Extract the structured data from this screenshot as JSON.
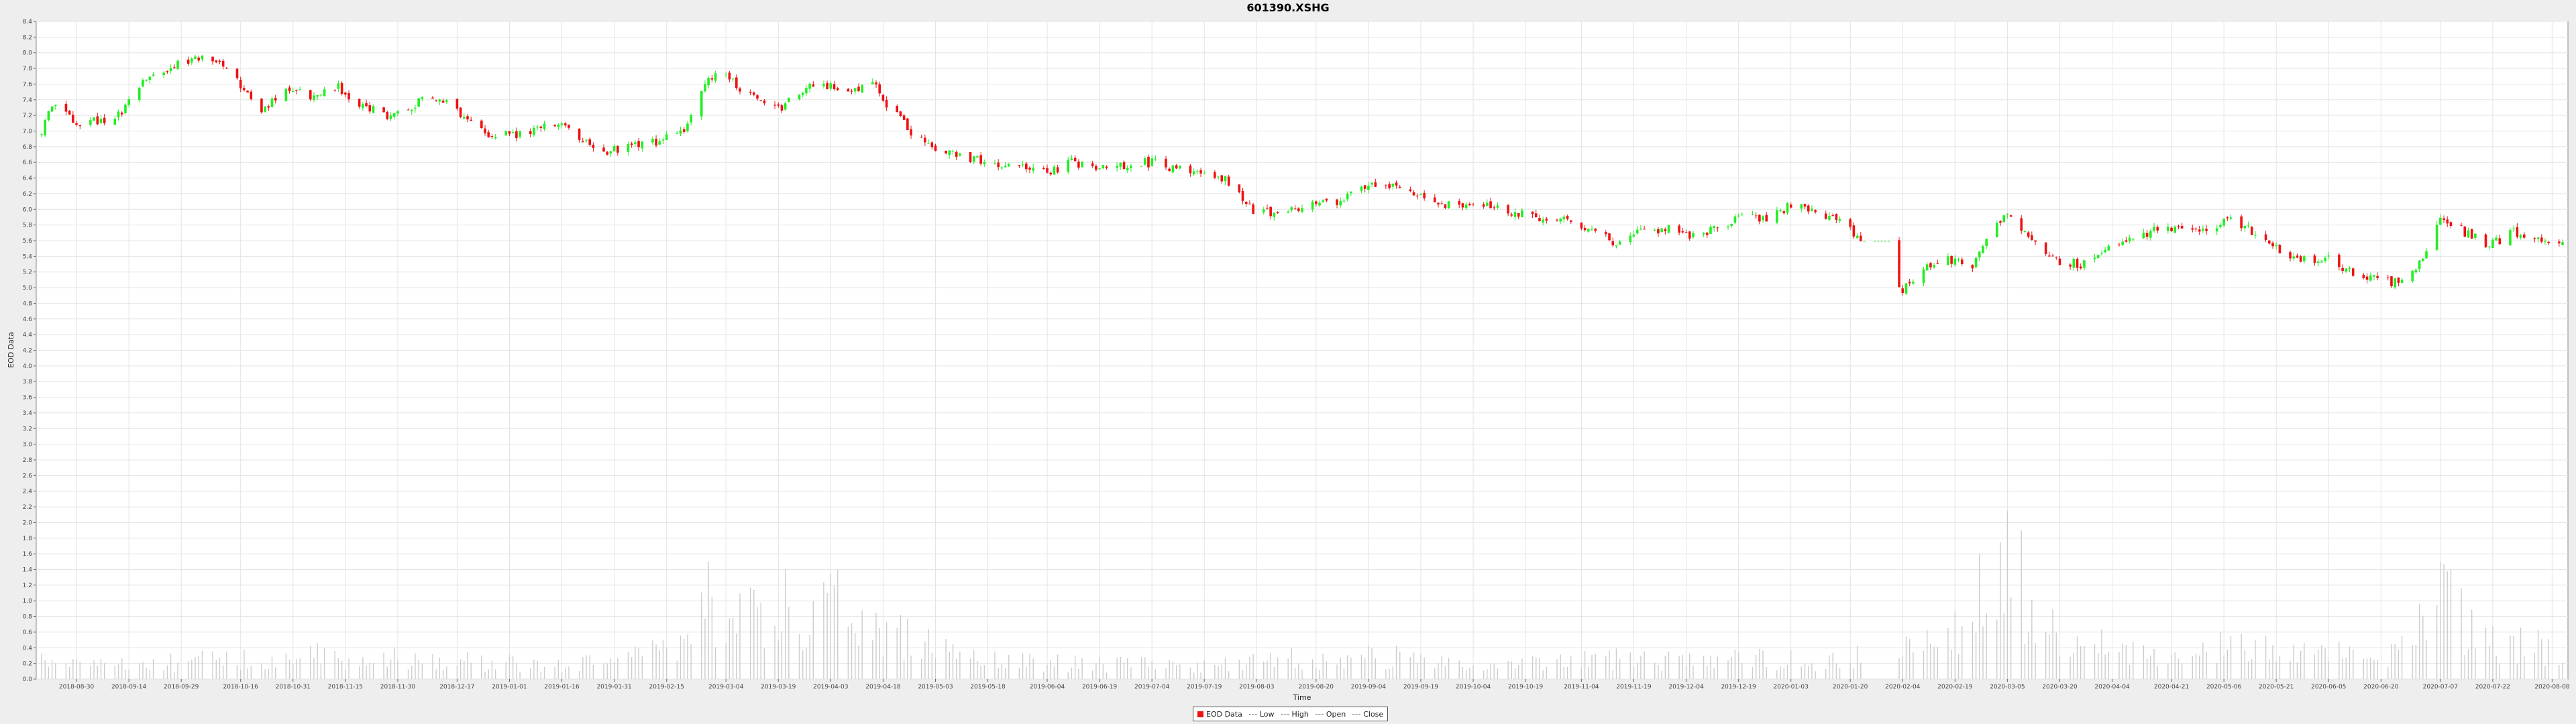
{
  "chart_data": {
    "type": "candlestick",
    "title": "601390.XSHG",
    "xlabel": "Time",
    "ylabel": "EOD Data",
    "ylim": [
      0.0,
      8.4
    ],
    "ytick_step": 0.2,
    "xlim": [
      "2018-08-20",
      "2020-08-11"
    ],
    "x_ticks": [
      "2018-08-30",
      "2018-09-14",
      "2018-09-29",
      "2018-10-16",
      "2018-10-31",
      "2018-11-15",
      "2018-11-30",
      "2018-12-17",
      "2019-01-01",
      "2019-01-16",
      "2019-01-31",
      "2019-02-15",
      "2019-03-04",
      "2019-03-19",
      "2019-04-03",
      "2019-04-18",
      "2019-05-03",
      "2019-05-18",
      "2019-06-04",
      "2019-06-19",
      "2019-07-04",
      "2019-07-19",
      "2019-08-03",
      "2019-08-20",
      "2019-09-04",
      "2019-09-19",
      "2019-10-04",
      "2019-10-19",
      "2019-11-04",
      "2019-11-19",
      "2019-12-04",
      "2019-12-19",
      "2020-01-03",
      "2020-01-20",
      "2020-02-04",
      "2020-02-19",
      "2020-03-05",
      "2020-03-20",
      "2020-04-04",
      "2020-04-21",
      "2020-05-06",
      "2020-05-21",
      "2020-06-05",
      "2020-06-20",
      "2020-07-07",
      "2020-07-22",
      "2020-08-08"
    ],
    "grid": true,
    "legend_position": "bottom",
    "legend": [
      "EOD Data",
      "Low",
      "High",
      "Open",
      "Close"
    ],
    "colors": {
      "up": "#22ee22",
      "down": "#ee1111",
      "volume": "#cccccc",
      "grid": "#e4e4e4",
      "plot_bg": "#ffffff",
      "frame_bg": "#eeeeee"
    },
    "price_anchors": [
      [
        "2018-08-20",
        6.95
      ],
      [
        "2018-08-23",
        7.35
      ],
      [
        "2018-08-30",
        7.1
      ],
      [
        "2018-09-07",
        7.15
      ],
      [
        "2018-09-12",
        7.2
      ],
      [
        "2018-09-17",
        7.6
      ],
      [
        "2018-09-28",
        7.85
      ],
      [
        "2018-10-08",
        7.95
      ],
      [
        "2018-10-15",
        7.65
      ],
      [
        "2018-10-22",
        7.25
      ],
      [
        "2018-10-30",
        7.55
      ],
      [
        "2018-11-06",
        7.45
      ],
      [
        "2018-11-13",
        7.55
      ],
      [
        "2018-11-20",
        7.3
      ],
      [
        "2018-11-28",
        7.2
      ],
      [
        "2018-12-05",
        7.35
      ],
      [
        "2018-12-12",
        7.45
      ],
      [
        "2018-12-19",
        7.15
      ],
      [
        "2018-12-26",
        6.95
      ],
      [
        "2019-01-04",
        6.95
      ],
      [
        "2019-01-09",
        7.05
      ],
      [
        "2019-01-18",
        7.05
      ],
      [
        "2019-01-25",
        6.75
      ],
      [
        "2019-02-01",
        6.75
      ],
      [
        "2019-02-12",
        6.85
      ],
      [
        "2019-02-20",
        7.0
      ],
      [
        "2019-02-25",
        7.55
      ],
      [
        "2019-03-01",
        7.75
      ],
      [
        "2019-03-07",
        7.6
      ],
      [
        "2019-03-12",
        7.4
      ],
      [
        "2019-03-20",
        7.3
      ],
      [
        "2019-03-27",
        7.55
      ],
      [
        "2019-04-03",
        7.55
      ],
      [
        "2019-04-10",
        7.55
      ],
      [
        "2019-04-16",
        7.6
      ],
      [
        "2019-04-19",
        7.35
      ],
      [
        "2019-04-26",
        7.0
      ],
      [
        "2019-05-06",
        6.7
      ],
      [
        "2019-05-14",
        6.65
      ],
      [
        "2019-05-24",
        6.55
      ],
      [
        "2019-06-04",
        6.45
      ],
      [
        "2019-06-11",
        6.6
      ],
      [
        "2019-06-20",
        6.55
      ],
      [
        "2019-07-04",
        6.6
      ],
      [
        "2019-07-12",
        6.5
      ],
      [
        "2019-07-19",
        6.45
      ],
      [
        "2019-07-26",
        6.35
      ],
      [
        "2019-08-03",
        5.95
      ],
      [
        "2019-08-13",
        6.0
      ],
      [
        "2019-08-20",
        6.05
      ],
      [
        "2019-08-27",
        6.1
      ],
      [
        "2019-09-04",
        6.3
      ],
      [
        "2019-09-11",
        6.3
      ],
      [
        "2019-09-18",
        6.2
      ],
      [
        "2019-09-25",
        6.05
      ],
      [
        "2019-10-09",
        6.05
      ],
      [
        "2019-10-17",
        5.95
      ],
      [
        "2019-10-24",
        5.9
      ],
      [
        "2019-11-01",
        5.85
      ],
      [
        "2019-11-08",
        5.7
      ],
      [
        "2019-11-15",
        5.55
      ],
      [
        "2019-11-22",
        5.75
      ],
      [
        "2019-11-29",
        5.75
      ],
      [
        "2019-12-06",
        5.65
      ],
      [
        "2019-12-13",
        5.75
      ],
      [
        "2019-12-20",
        5.9
      ],
      [
        "2019-12-27",
        5.9
      ],
      [
        "2020-01-03",
        6.05
      ],
      [
        "2020-01-10",
        5.95
      ],
      [
        "2020-01-17",
        5.85
      ],
      [
        "2020-01-23",
        5.6
      ],
      [
        "2020-02-03",
        4.95
      ],
      [
        "2020-02-10",
        5.25
      ],
      [
        "2020-02-17",
        5.35
      ],
      [
        "2020-02-24",
        5.3
      ],
      [
        "2020-03-02",
        5.85
      ],
      [
        "2020-03-05",
        5.95
      ],
      [
        "2020-03-12",
        5.6
      ],
      [
        "2020-03-19",
        5.35
      ],
      [
        "2020-03-26",
        5.3
      ],
      [
        "2020-04-02",
        5.45
      ],
      [
        "2020-04-10",
        5.65
      ],
      [
        "2020-04-17",
        5.75
      ],
      [
        "2020-04-24",
        5.8
      ],
      [
        "2020-04-30",
        5.75
      ],
      [
        "2020-05-08",
        5.85
      ],
      [
        "2020-05-15",
        5.7
      ],
      [
        "2020-05-22",
        5.45
      ],
      [
        "2020-05-29",
        5.35
      ],
      [
        "2020-06-05",
        5.35
      ],
      [
        "2020-06-12",
        5.2
      ],
      [
        "2020-06-19",
        5.1
      ],
      [
        "2020-06-26",
        5.05
      ],
      [
        "2020-07-03",
        5.45
      ],
      [
        "2020-07-07",
        5.95
      ],
      [
        "2020-07-14",
        5.7
      ],
      [
        "2020-07-21",
        5.55
      ],
      [
        "2020-07-28",
        5.7
      ],
      [
        "2020-08-04",
        5.65
      ],
      [
        "2020-08-11",
        5.55
      ]
    ],
    "volume_anchors": [
      [
        "2018-08-20",
        0.25
      ],
      [
        "2018-09-15",
        0.2
      ],
      [
        "2018-10-10",
        0.3
      ],
      [
        "2018-11-01",
        0.35
      ],
      [
        "2018-12-15",
        0.3
      ],
      [
        "2019-01-20",
        0.2
      ],
      [
        "2019-02-15",
        0.45
      ],
      [
        "2019-02-28",
        1.05
      ],
      [
        "2019-03-10",
        0.9
      ],
      [
        "2019-03-25",
        0.7
      ],
      [
        "2019-04-05",
        1.05
      ],
      [
        "2019-04-18",
        0.75
      ],
      [
        "2019-05-05",
        0.4
      ],
      [
        "2019-06-01",
        0.25
      ],
      [
        "2019-07-15",
        0.2
      ],
      [
        "2019-08-10",
        0.3
      ],
      [
        "2019-09-05",
        0.35
      ],
      [
        "2019-10-15",
        0.2
      ],
      [
        "2019-11-15",
        0.3
      ],
      [
        "2019-12-20",
        0.3
      ],
      [
        "2020-01-15",
        0.25
      ],
      [
        "2020-02-05",
        0.45
      ],
      [
        "2020-02-25",
        0.75
      ],
      [
        "2020-03-05",
        1.45
      ],
      [
        "2020-03-15",
        0.7
      ],
      [
        "2020-04-10",
        0.45
      ],
      [
        "2020-05-01",
        0.5
      ],
      [
        "2020-06-01",
        0.35
      ],
      [
        "2020-06-25",
        0.4
      ],
      [
        "2020-07-07",
        1.2
      ],
      [
        "2020-07-20",
        0.55
      ],
      [
        "2020-08-11",
        0.45
      ]
    ],
    "volume_peaks": [
      [
        "2019-02-27",
        1.5
      ],
      [
        "2019-03-21",
        1.4
      ],
      [
        "2019-04-03",
        1.35
      ],
      [
        "2020-02-26",
        1.6
      ],
      [
        "2020-03-05",
        2.15
      ],
      [
        "2020-03-09",
        1.9
      ],
      [
        "2020-07-07",
        1.5
      ],
      [
        "2020-07-10",
        1.4
      ]
    ],
    "gaps": [
      [
        "2020-01-23",
        "2020-02-02"
      ]
    ]
  }
}
